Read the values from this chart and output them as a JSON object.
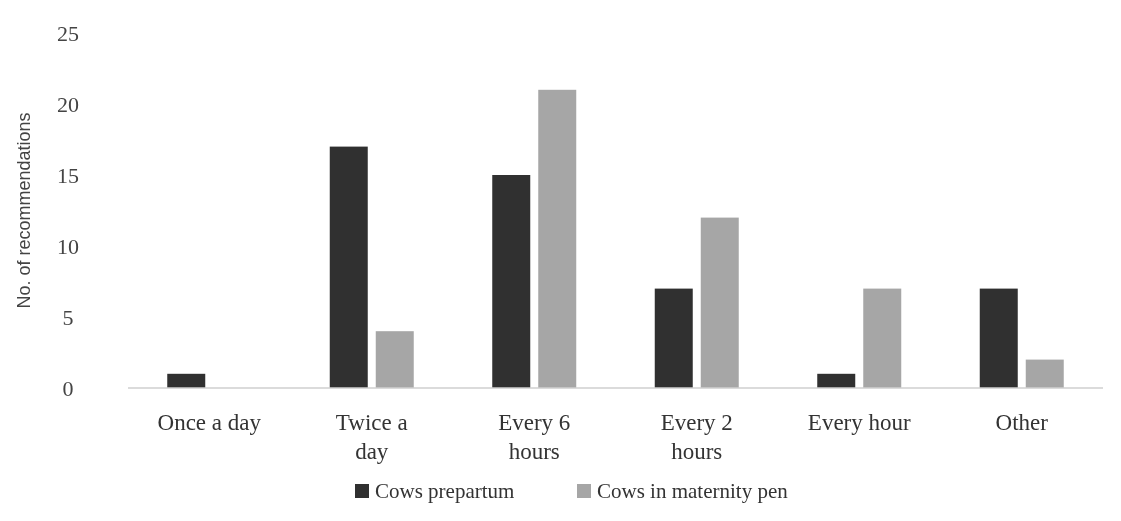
{
  "chart_data": {
    "type": "bar",
    "ylabel": "No. of recommendations",
    "categories": [
      "Once a day",
      "Twice a\nday",
      "Every 6\nhours",
      "Every 2\nhours",
      "Every hour",
      "Other"
    ],
    "series": [
      {
        "name": "Cows prepartum",
        "color": "#303030",
        "values": [
          1,
          17,
          15,
          7,
          1,
          7
        ]
      },
      {
        "name": "Cows in maternity pen",
        "color": "#a6a6a6",
        "values": [
          0,
          4,
          21,
          12,
          7,
          2
        ]
      }
    ],
    "ylim": [
      0,
      25
    ],
    "yticks": [
      0,
      5,
      10,
      15,
      20,
      25
    ],
    "grid": false,
    "legend": "bottom"
  }
}
